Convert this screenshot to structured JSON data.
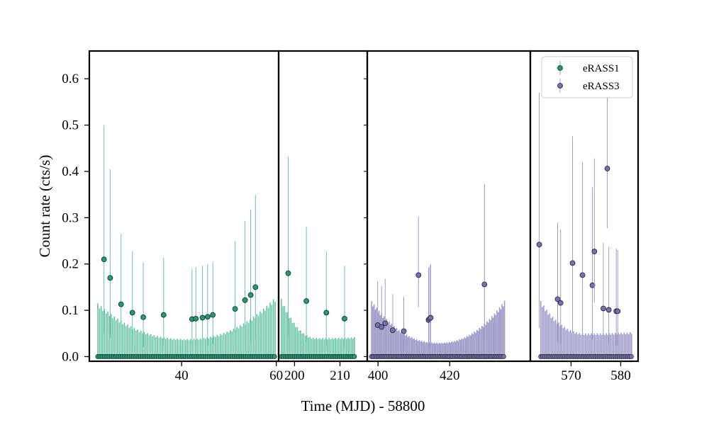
{
  "chart_data": {
    "type": "scatter",
    "xlabel": "Time (MJD) - 58800",
    "ylabel": "Count rate (cts/s)",
    "ylim": [
      -0.01,
      0.66
    ],
    "yticks": [
      "0.0",
      "0.1",
      "0.2",
      "0.3",
      "0.4",
      "0.5",
      "0.6"
    ],
    "colors": {
      "eRASS1": "#1b9e77",
      "eRASS3": "#7570b3",
      "errorbar_eRASS1": "#66c2a5",
      "errorbar_eRASS3": "#9e9ac8"
    },
    "legend": {
      "placement": "top-right",
      "entries": [
        "eRASS1",
        "eRASS3"
      ]
    },
    "panels": [
      {
        "xlim": [
          20.5,
          60.5
        ],
        "xticks": [
          {
            "value": 40,
            "label": "40"
          },
          {
            "value": 60,
            "label": "60"
          }
        ],
        "series": "eRASS1",
        "detections": [
          {
            "x": 23.6,
            "y": 0.21,
            "upper": 0.5
          },
          {
            "x": 24.9,
            "y": 0.17,
            "upper": 0.405
          },
          {
            "x": 27.2,
            "y": 0.113,
            "upper": 0.265
          },
          {
            "x": 29.6,
            "y": 0.095,
            "upper": 0.227
          },
          {
            "x": 31.9,
            "y": 0.085,
            "upper": 0.203
          },
          {
            "x": 36.2,
            "y": 0.09,
            "upper": 0.213
          },
          {
            "x": 42.2,
            "y": 0.081,
            "upper": 0.19
          },
          {
            "x": 43.0,
            "y": 0.082,
            "upper": 0.193
          },
          {
            "x": 44.4,
            "y": 0.084,
            "upper": 0.196
          },
          {
            "x": 45.5,
            "y": 0.086,
            "upper": 0.2
          },
          {
            "x": 46.6,
            "y": 0.09,
            "upper": 0.204
          },
          {
            "x": 51.3,
            "y": 0.103,
            "upper": 0.249
          },
          {
            "x": 53.4,
            "y": 0.122,
            "upper": 0.293
          },
          {
            "x": 54.6,
            "y": 0.133,
            "upper": 0.318
          },
          {
            "x": 55.6,
            "y": 0.15,
            "upper": 0.349
          }
        ],
        "upper_limits": {
          "start": 22.3,
          "end": 59.8,
          "step": 0.35,
          "edge_value": 0.115,
          "min_value": 0.038,
          "right_edge_value": 0.128
        }
      },
      {
        "xlim": [
          196.5,
          216
        ],
        "xticks": [
          {
            "value": 200,
            "label": "200"
          },
          {
            "value": 210,
            "label": "210"
          }
        ],
        "series": "eRASS1",
        "detections": [
          {
            "x": 198.6,
            "y": 0.18,
            "upper": 0.432
          },
          {
            "x": 202.6,
            "y": 0.12,
            "upper": 0.28
          },
          {
            "x": 207.0,
            "y": 0.095,
            "upper": 0.227
          },
          {
            "x": 211.0,
            "y": 0.082,
            "upper": 0.196
          }
        ],
        "upper_limits": {
          "start": 197.1,
          "end": 213.2,
          "step": 0.35,
          "edge_value": 0.125,
          "min_value": 0.04,
          "right_edge_value": 0.042
        }
      },
      {
        "xlim": [
          397,
          442.5
        ],
        "xticks": [
          {
            "value": 400,
            "label": "400"
          },
          {
            "value": 420,
            "label": "420"
          }
        ],
        "series": "eRASS3",
        "detections": [
          {
            "x": 399.9,
            "y": 0.068,
            "upper": 0.162
          },
          {
            "x": 401.0,
            "y": 0.064,
            "upper": 0.153
          },
          {
            "x": 402.0,
            "y": 0.072,
            "upper": 0.168
          },
          {
            "x": 404.1,
            "y": 0.057,
            "upper": 0.135
          },
          {
            "x": 407.2,
            "y": 0.055,
            "upper": 0.13
          },
          {
            "x": 411.3,
            "y": 0.176,
            "upper": 0.302
          },
          {
            "x": 414.1,
            "y": 0.079,
            "upper": 0.192
          },
          {
            "x": 414.4,
            "y": 0.082,
            "upper": 0.196
          },
          {
            "x": 414.7,
            "y": 0.084,
            "upper": 0.2
          },
          {
            "x": 429.7,
            "y": 0.156,
            "upper": 0.373
          }
        ],
        "upper_limits": {
          "start": 398.2,
          "end": 435.4,
          "step": 0.35,
          "edge_value": 0.12,
          "min_value": 0.03,
          "right_edge_value": 0.122
        }
      },
      {
        "xlim": [
          561.8,
          583.5
        ],
        "xticks": [
          {
            "value": 570,
            "label": "570"
          },
          {
            "value": 580,
            "label": "580"
          }
        ],
        "series": "eRASS3",
        "detections": [
          {
            "x": 563.6,
            "y": 0.242,
            "upper": 0.57
          },
          {
            "x": 567.3,
            "y": 0.124,
            "upper": 0.29
          },
          {
            "x": 567.9,
            "y": 0.116,
            "upper": 0.275
          },
          {
            "x": 570.3,
            "y": 0.202,
            "upper": 0.476
          },
          {
            "x": 572.3,
            "y": 0.176,
            "upper": 0.42
          },
          {
            "x": 574.3,
            "y": 0.154,
            "upper": 0.366
          },
          {
            "x": 574.7,
            "y": 0.227,
            "upper": 0.428
          },
          {
            "x": 576.5,
            "y": 0.104,
            "upper": 0.246
          },
          {
            "x": 577.3,
            "y": 0.406,
            "upper": 0.64
          },
          {
            "x": 577.6,
            "y": 0.101,
            "upper": 0.237
          },
          {
            "x": 579.1,
            "y": 0.098,
            "upper": 0.233
          },
          {
            "x": 579.4,
            "y": 0.098,
            "upper": 0.23
          }
        ],
        "upper_limits": {
          "start": 563.9,
          "end": 582.4,
          "step": 0.3,
          "edge_value": 0.12,
          "min_value": 0.05,
          "right_edge_value": 0.053
        }
      }
    ]
  }
}
